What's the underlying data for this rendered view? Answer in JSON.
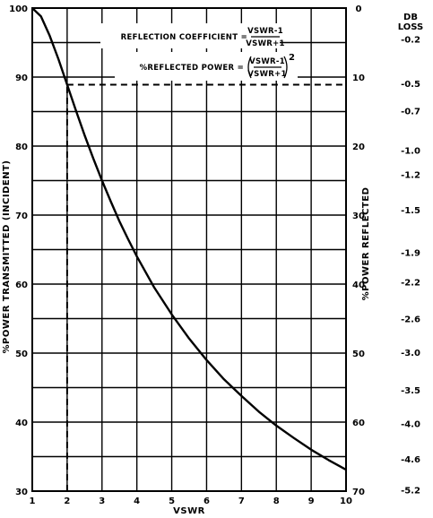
{
  "chart_data": {
    "type": "line",
    "title": "",
    "xlabel": "VSWR",
    "ylabel_left": "%POWER TRANSMITTED (INCIDENT)",
    "ylabel_right": "%POWER REFLECTED",
    "db_label_line1": "DB",
    "db_label_line2": "LOSS",
    "xlim": [
      1,
      10
    ],
    "ylim": [
      30,
      100
    ],
    "grid": true,
    "x_ticks": [
      "1",
      "2",
      "3",
      "4",
      "5",
      "6",
      "7",
      "8",
      "9",
      "10"
    ],
    "left_ticks": [
      {
        "value": 100,
        "label": "100"
      },
      {
        "value": 90,
        "label": "90"
      },
      {
        "value": 80,
        "label": "80"
      },
      {
        "value": 70,
        "label": "70"
      },
      {
        "value": 60,
        "label": "60"
      },
      {
        "value": 50,
        "label": "50"
      },
      {
        "value": 40,
        "label": "40"
      },
      {
        "value": 30,
        "label": "30"
      }
    ],
    "right_ticks": [
      {
        "value": 100,
        "label": "0"
      },
      {
        "value": 90,
        "label": "10"
      },
      {
        "value": 80,
        "label": "20"
      },
      {
        "value": 70,
        "label": "30"
      },
      {
        "value": 60,
        "label": "40"
      },
      {
        "value": 50,
        "label": "50"
      },
      {
        "value": 40,
        "label": "60"
      },
      {
        "value": 30,
        "label": "70"
      }
    ],
    "db_ticks": [
      {
        "value": 95.5,
        "label": "-0.2"
      },
      {
        "value": 89.1,
        "label": "-0.5"
      },
      {
        "value": 85.1,
        "label": "-0.7"
      },
      {
        "value": 79.4,
        "label": "-1.0"
      },
      {
        "value": 75.9,
        "label": "-1.2"
      },
      {
        "value": 70.8,
        "label": "-1.5"
      },
      {
        "value": 64.6,
        "label": "-1.9"
      },
      {
        "value": 60.3,
        "label": "-2.2"
      },
      {
        "value": 55.0,
        "label": "-2.6"
      },
      {
        "value": 50.1,
        "label": "-3.0"
      },
      {
        "value": 44.7,
        "label": "-3.5"
      },
      {
        "value": 39.8,
        "label": "-4.0"
      },
      {
        "value": 34.7,
        "label": "-4.6"
      },
      {
        "value": 30.2,
        "label": "-5.2"
      }
    ],
    "series": [
      {
        "x": [
          1,
          1.25,
          1.5,
          1.75,
          2,
          2.25,
          2.5,
          2.75,
          3,
          3.25,
          3.5,
          3.75,
          4,
          4.5,
          5,
          5.5,
          6,
          6.5,
          7,
          7.5,
          8,
          8.5,
          9,
          9.5,
          10
        ],
        "values": [
          100,
          98.8,
          96.0,
          92.6,
          88.9,
          85.2,
          81.6,
          78.2,
          75.0,
          72.0,
          69.1,
          66.5,
          64.0,
          59.5,
          55.6,
          52.1,
          49.0,
          46.2,
          43.8,
          41.5,
          39.5,
          37.7,
          36.0,
          34.5,
          33.1
        ]
      }
    ],
    "reference_line": {
      "x": 2,
      "y": 88.9
    },
    "formula_1": {
      "lhs": "REFLECTION COEFFICIENT =",
      "numerator": "VSWR-1",
      "denominator": "VSWR+1"
    },
    "formula_2": {
      "lhs": "%REFLECTED POWER =",
      "numerator": "VSWR-1",
      "denominator": "VSWR+1",
      "exponent": "2"
    }
  }
}
